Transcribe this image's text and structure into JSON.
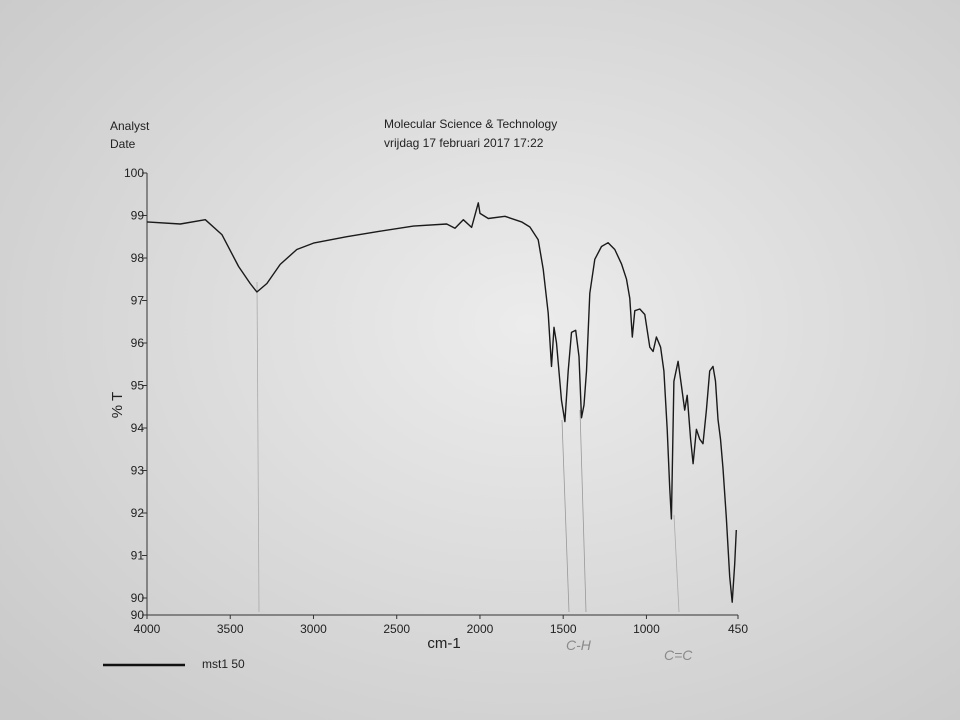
{
  "header": {
    "analyst": "Analyst",
    "date": "Date",
    "institute": "Molecular Science & Technology",
    "timestamp": "vrijdag 17 februari 2017 17:22"
  },
  "chart_data": {
    "type": "line",
    "ylabel": "% T",
    "xlabel": "cm-1",
    "xlim": [
      4000,
      450
    ],
    "ylim": [
      89.6,
      100
    ],
    "xticks": [
      4000,
      3500,
      3000,
      2500,
      2000,
      1500,
      1000,
      450
    ],
    "yticks": [
      {
        "value": 89.6,
        "label": "90"
      },
      90,
      91,
      92,
      93,
      94,
      95,
      96,
      97,
      98,
      99,
      100
    ],
    "x": [
      4000,
      3800,
      3650,
      3550,
      3450,
      3380,
      3340,
      3280,
      3200,
      3100,
      3000,
      2800,
      2600,
      2400,
      2200,
      2150,
      2100,
      2050,
      2010,
      2000,
      1950,
      1850,
      1750,
      1700,
      1650,
      1620,
      1590,
      1570,
      1555,
      1540,
      1510,
      1490,
      1470,
      1450,
      1425,
      1405,
      1390,
      1375,
      1360,
      1340,
      1310,
      1270,
      1230,
      1190,
      1150,
      1120,
      1100,
      1085,
      1070,
      1040,
      1010,
      980,
      960,
      940,
      915,
      895,
      875,
      860,
      850,
      835,
      810,
      790,
      770,
      755,
      735,
      720,
      700,
      680,
      660,
      640,
      620,
      600,
      585,
      570,
      555,
      540,
      520,
      500,
      485,
      470,
      460
    ],
    "series": [
      {
        "name": "mst1 50",
        "color": "#1a1a1a",
        "values": [
          98.85,
          98.8,
          98.9,
          98.55,
          97.8,
          97.4,
          97.2,
          97.4,
          97.85,
          98.2,
          98.35,
          98.5,
          98.63,
          98.75,
          98.8,
          98.7,
          98.9,
          98.72,
          99.3,
          99.05,
          98.93,
          98.98,
          98.85,
          98.73,
          98.43,
          97.74,
          96.7,
          95.45,
          96.37,
          96.0,
          94.65,
          94.15,
          95.34,
          96.25,
          96.3,
          95.68,
          94.24,
          94.54,
          95.34,
          97.17,
          97.97,
          98.27,
          98.36,
          98.2,
          97.86,
          97.5,
          97.05,
          96.14,
          96.76,
          96.8,
          96.67,
          95.9,
          95.8,
          96.14,
          95.9,
          95.34,
          93.97,
          92.6,
          91.86,
          95.1,
          95.57,
          95.0,
          94.42,
          94.77,
          93.74,
          93.16,
          93.97,
          93.74,
          93.63,
          94.42,
          95.34,
          95.45,
          95.1,
          94.2,
          93.74,
          93.05,
          91.9,
          90.5,
          89.9,
          90.8,
          91.6
        ]
      }
    ],
    "annotations": [
      "C-H",
      "C=C"
    ]
  }
}
